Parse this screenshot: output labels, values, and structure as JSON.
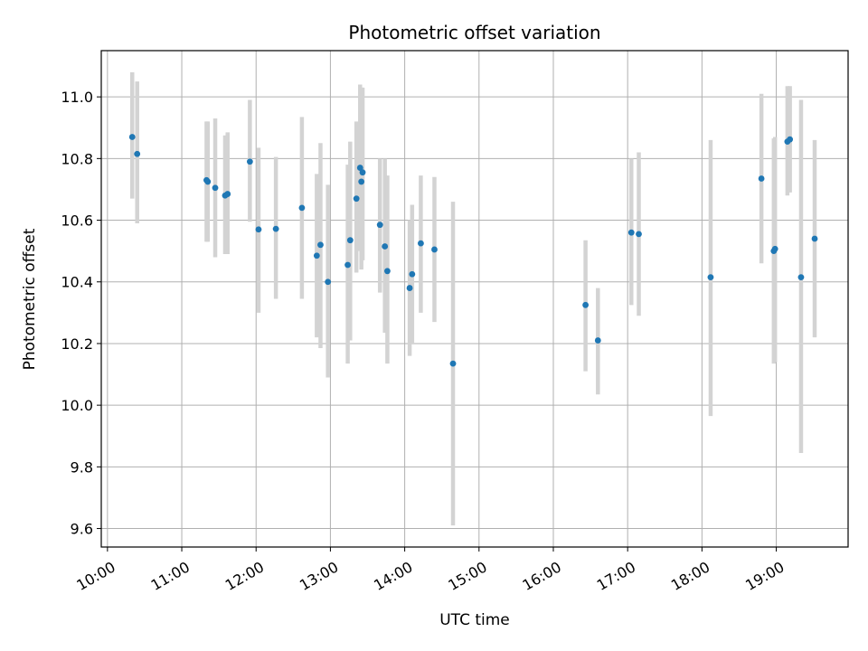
{
  "chart_data": {
    "type": "scatter",
    "title": "Photometric offset variation",
    "xlabel": "UTC time",
    "ylabel": "Photometric offset",
    "x_axis": {
      "kind": "time",
      "range": [
        "09:55",
        "19:58"
      ],
      "ticks": [
        "10:00",
        "11:00",
        "12:00",
        "13:00",
        "14:00",
        "15:00",
        "16:00",
        "17:00",
        "18:00",
        "19:00"
      ]
    },
    "y_axis": {
      "range": [
        9.54,
        11.15
      ],
      "ticks": [
        "9.6",
        "9.8",
        "10.0",
        "10.2",
        "10.4",
        "10.6",
        "10.8",
        "11.0"
      ]
    },
    "grid": true,
    "colors": {
      "point": "#1f77b4",
      "errorbar": "#d3d3d3",
      "grid": "#b0b0b0"
    },
    "series": [
      {
        "points": [
          {
            "x": "10:20",
            "y": 10.87,
            "err_low": 10.67,
            "err_high": 11.08
          },
          {
            "x": "10:24",
            "y": 10.815,
            "err_low": 10.59,
            "err_high": 11.05
          },
          {
            "x": "11:20",
            "y": 10.73,
            "err_low": 10.53,
            "err_high": 10.92
          },
          {
            "x": "11:21",
            "y": 10.725,
            "err_low": 10.53,
            "err_high": 10.92
          },
          {
            "x": "11:27",
            "y": 10.705,
            "err_low": 10.48,
            "err_high": 10.93
          },
          {
            "x": "11:35",
            "y": 10.68,
            "err_low": 10.49,
            "err_high": 10.875
          },
          {
            "x": "11:37",
            "y": 10.685,
            "err_low": 10.49,
            "err_high": 10.885
          },
          {
            "x": "11:55",
            "y": 10.79,
            "err_low": 10.595,
            "err_high": 10.99
          },
          {
            "x": "12:02",
            "y": 10.57,
            "err_low": 10.3,
            "err_high": 10.835
          },
          {
            "x": "12:16",
            "y": 10.572,
            "err_low": 10.345,
            "err_high": 10.805
          },
          {
            "x": "12:37",
            "y": 10.64,
            "err_low": 10.345,
            "err_high": 10.935
          },
          {
            "x": "12:49",
            "y": 10.485,
            "err_low": 10.22,
            "err_high": 10.75
          },
          {
            "x": "12:52",
            "y": 10.52,
            "err_low": 10.185,
            "err_high": 10.85
          },
          {
            "x": "12:58",
            "y": 10.4,
            "err_low": 10.09,
            "err_high": 10.715
          },
          {
            "x": "13:14",
            "y": 10.455,
            "err_low": 10.135,
            "err_high": 10.78
          },
          {
            "x": "13:16",
            "y": 10.535,
            "err_low": 10.21,
            "err_high": 10.855
          },
          {
            "x": "13:21",
            "y": 10.67,
            "err_low": 10.43,
            "err_high": 10.92
          },
          {
            "x": "13:24",
            "y": 10.77,
            "err_low": 10.5,
            "err_high": 11.04
          },
          {
            "x": "13:25",
            "y": 10.725,
            "err_low": 10.44,
            "err_high": 11.03
          },
          {
            "x": "13:26",
            "y": 10.755,
            "err_low": 10.47,
            "err_high": 11.03
          },
          {
            "x": "13:40",
            "y": 10.585,
            "err_low": 10.365,
            "err_high": 10.8
          },
          {
            "x": "13:44",
            "y": 10.515,
            "err_low": 10.235,
            "err_high": 10.8
          },
          {
            "x": "13:46",
            "y": 10.435,
            "err_low": 10.135,
            "err_high": 10.745
          },
          {
            "x": "14:04",
            "y": 10.38,
            "err_low": 10.16,
            "err_high": 10.6
          },
          {
            "x": "14:06",
            "y": 10.425,
            "err_low": 10.2,
            "err_high": 10.65
          },
          {
            "x": "14:13",
            "y": 10.525,
            "err_low": 10.3,
            "err_high": 10.745
          },
          {
            "x": "14:24",
            "y": 10.505,
            "err_low": 10.27,
            "err_high": 10.74
          },
          {
            "x": "14:39",
            "y": 10.135,
            "err_low": 9.61,
            "err_high": 10.66
          },
          {
            "x": "16:26",
            "y": 10.325,
            "err_low": 10.11,
            "err_high": 10.535
          },
          {
            "x": "16:36",
            "y": 10.21,
            "err_low": 10.035,
            "err_high": 10.38
          },
          {
            "x": "17:03",
            "y": 10.56,
            "err_low": 10.325,
            "err_high": 10.8
          },
          {
            "x": "17:09",
            "y": 10.555,
            "err_low": 10.29,
            "err_high": 10.82
          },
          {
            "x": "18:07",
            "y": 10.415,
            "err_low": 9.965,
            "err_high": 10.86
          },
          {
            "x": "18:48",
            "y": 10.735,
            "err_low": 10.46,
            "err_high": 11.01
          },
          {
            "x": "18:58",
            "y": 10.5,
            "err_low": 10.135,
            "err_high": 10.865
          },
          {
            "x": "18:59",
            "y": 10.507,
            "err_low": 10.14,
            "err_high": 10.87
          },
          {
            "x": "19:09",
            "y": 10.855,
            "err_low": 10.68,
            "err_high": 11.035
          },
          {
            "x": "19:11",
            "y": 10.862,
            "err_low": 10.69,
            "err_high": 11.035
          },
          {
            "x": "19:20",
            "y": 10.415,
            "err_low": 9.845,
            "err_high": 10.99
          },
          {
            "x": "19:31",
            "y": 10.54,
            "err_low": 10.22,
            "err_high": 10.86
          }
        ]
      }
    ]
  }
}
